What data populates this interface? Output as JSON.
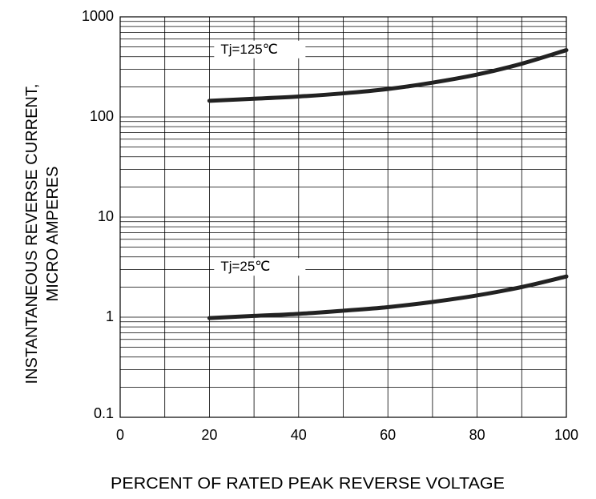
{
  "chart_data": {
    "type": "line",
    "xlabel": "PERCENT OF RATED PEAK REVERSE VOLTAGE",
    "ylabel_lines": [
      "INSTANTANEOUS REVERSE CURRENT,",
      "MICRO AMPERES"
    ],
    "xlim": [
      0,
      100
    ],
    "ylim": [
      0.1,
      1000
    ],
    "y_scale": "log",
    "grid": true,
    "x_ticks": [
      {
        "value": 0,
        "label": "0"
      },
      {
        "value": 20,
        "label": "20"
      },
      {
        "value": 40,
        "label": "40"
      },
      {
        "value": 60,
        "label": "60"
      },
      {
        "value": 80,
        "label": "80"
      },
      {
        "value": 100,
        "label": "100"
      }
    ],
    "y_ticks": [
      {
        "value": 0.1,
        "label": "0.1"
      },
      {
        "value": 1,
        "label": "1"
      },
      {
        "value": 10,
        "label": "10"
      },
      {
        "value": 100,
        "label": "100"
      },
      {
        "value": 1000,
        "label": "1000"
      }
    ],
    "series": [
      {
        "label": "Tj=125℃",
        "x": [
          20,
          30,
          40,
          50,
          60,
          70,
          80,
          90,
          100
        ],
        "y": [
          145,
          152,
          160,
          172,
          190,
          220,
          265,
          340,
          465
        ]
      },
      {
        "label": "Tj=25℃",
        "x": [
          20,
          30,
          40,
          50,
          60,
          70,
          80,
          90,
          100
        ],
        "y": [
          0.98,
          1.03,
          1.08,
          1.16,
          1.26,
          1.42,
          1.65,
          2.0,
          2.55
        ]
      }
    ],
    "colors": {
      "line": "#222222",
      "grid": "#000000",
      "background": "#ffffff"
    }
  }
}
